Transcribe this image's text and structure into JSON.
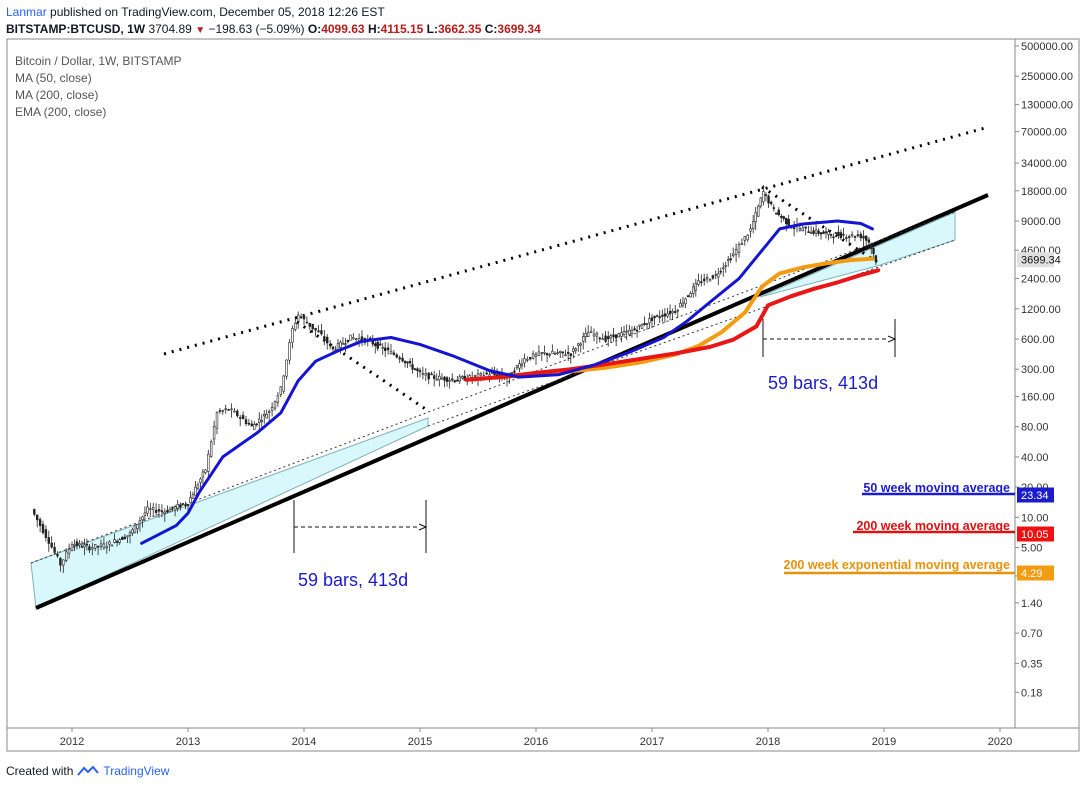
{
  "header": {
    "author": "Lanmar",
    "published_text": "published on TradingView.com, December 05, 2018 12:26 EST",
    "symbol": "BITSTAMP:BTCUSD, 1W",
    "last": "3704.89",
    "change": "−198.63 (−5.09%)",
    "o_label": "O:",
    "o_value": "4099.63",
    "h_label": "H:",
    "h_value": "4115.15",
    "l_label": "L:",
    "l_value": "3662.35",
    "c_label": "C:",
    "c_value": "3699.34"
  },
  "legend": {
    "title": "Bitcoin / Dollar, 1W, BITSTAMP",
    "items": [
      "MA (50, close)",
      "MA (200, close)",
      "EMA (200, close)"
    ]
  },
  "footer": {
    "created_with": "Created with",
    "brand": "TradingView"
  },
  "colors": {
    "ma50": "#1414d2",
    "ma200": "#e81616",
    "ema200": "#f39c12",
    "channel_fill": "#d8f8fc",
    "candles": "#222222",
    "price_label_bg": "#e0e0e0"
  },
  "chart_data": {
    "type": "line",
    "y_scale": "log",
    "x_ticks": [
      "2012",
      "2013",
      "2014",
      "2015",
      "2016",
      "2017",
      "2018",
      "2019",
      "2020"
    ],
    "y_ticks": [
      "500000.00",
      "250000.00",
      "130000.00",
      "70000.00",
      "34000.00",
      "18000.00",
      "9000.00",
      "4600.00",
      "2400.00",
      "1200.00",
      "600.00",
      "300.00",
      "160.00",
      "80.00",
      "40.00",
      "20.00",
      "10.00",
      "5.00",
      "2.60",
      "1.40",
      "0.70",
      "0.35",
      "0.18"
    ],
    "last_price_label": "3699.34",
    "series": [
      {
        "name": "MA (50, close)",
        "points": [
          [
            2012.6,
            5.5
          ],
          [
            2012.9,
            8.3
          ],
          [
            2013.0,
            11
          ],
          [
            2013.1,
            18
          ],
          [
            2013.3,
            40
          ],
          [
            2013.6,
            70
          ],
          [
            2013.8,
            110
          ],
          [
            2013.95,
            230
          ],
          [
            2014.1,
            360
          ],
          [
            2014.3,
            460
          ],
          [
            2014.5,
            570
          ],
          [
            2014.75,
            620
          ],
          [
            2015.0,
            530
          ],
          [
            2015.3,
            400
          ],
          [
            2015.6,
            290
          ],
          [
            2015.85,
            250
          ],
          [
            2016.2,
            265
          ],
          [
            2016.5,
            330
          ],
          [
            2016.8,
            440
          ],
          [
            2017.1,
            620
          ],
          [
            2017.3,
            900
          ],
          [
            2017.5,
            1400
          ],
          [
            2017.75,
            2400
          ],
          [
            2017.95,
            4600
          ],
          [
            2018.1,
            7500
          ],
          [
            2018.3,
            8400
          ],
          [
            2018.6,
            9000
          ],
          [
            2018.8,
            8500
          ],
          [
            2018.9,
            7500
          ]
        ]
      },
      {
        "name": "MA (200, close)",
        "points": [
          [
            2015.4,
            235
          ],
          [
            2015.7,
            250
          ],
          [
            2016.0,
            275
          ],
          [
            2016.3,
            300
          ],
          [
            2016.6,
            335
          ],
          [
            2016.9,
            380
          ],
          [
            2017.2,
            430
          ],
          [
            2017.5,
            500
          ],
          [
            2017.7,
            590
          ],
          [
            2017.9,
            800
          ],
          [
            2018.0,
            1300
          ],
          [
            2018.2,
            1600
          ],
          [
            2018.4,
            1900
          ],
          [
            2018.6,
            2200
          ],
          [
            2018.8,
            2600
          ],
          [
            2018.95,
            2900
          ]
        ]
      },
      {
        "name": "EMA (200, close)",
        "points": [
          [
            2015.7,
            250
          ],
          [
            2016.0,
            265
          ],
          [
            2016.3,
            285
          ],
          [
            2016.6,
            310
          ],
          [
            2016.9,
            350
          ],
          [
            2017.2,
            420
          ],
          [
            2017.4,
            510
          ],
          [
            2017.6,
            700
          ],
          [
            2017.8,
            1100
          ],
          [
            2017.95,
            2000
          ],
          [
            2018.1,
            2700
          ],
          [
            2018.3,
            3100
          ],
          [
            2018.5,
            3400
          ],
          [
            2018.7,
            3650
          ],
          [
            2018.9,
            3800
          ]
        ]
      },
      {
        "name": "BTCUSD",
        "points": [
          [
            2011.65,
            12
          ],
          [
            2011.8,
            5.8
          ],
          [
            2011.9,
            3.4
          ],
          [
            2012.0,
            5.5
          ],
          [
            2012.15,
            5.0
          ],
          [
            2012.3,
            5.3
          ],
          [
            2012.5,
            6.8
          ],
          [
            2012.65,
            12
          ],
          [
            2012.8,
            11.5
          ],
          [
            2013.0,
            14
          ],
          [
            2013.15,
            30
          ],
          [
            2013.25,
            110
          ],
          [
            2013.35,
            120
          ],
          [
            2013.45,
            100
          ],
          [
            2013.55,
            80
          ],
          [
            2013.7,
            115
          ],
          [
            2013.8,
            190
          ],
          [
            2013.9,
            750
          ],
          [
            2013.95,
            1050
          ],
          [
            2014.05,
            820
          ],
          [
            2014.15,
            650
          ],
          [
            2014.25,
            470
          ],
          [
            2014.4,
            620
          ],
          [
            2014.55,
            580
          ],
          [
            2014.7,
            470
          ],
          [
            2014.85,
            380
          ],
          [
            2015.0,
            270
          ],
          [
            2015.1,
            250
          ],
          [
            2015.3,
            235
          ],
          [
            2015.45,
            250
          ],
          [
            2015.6,
            270
          ],
          [
            2015.75,
            245
          ],
          [
            2015.9,
            380
          ],
          [
            2016.05,
            430
          ],
          [
            2016.3,
            430
          ],
          [
            2016.45,
            700
          ],
          [
            2016.6,
            600
          ],
          [
            2016.85,
            740
          ],
          [
            2017.0,
            960
          ],
          [
            2017.2,
            1150
          ],
          [
            2017.4,
            2200
          ],
          [
            2017.55,
            2600
          ],
          [
            2017.7,
            4200
          ],
          [
            2017.85,
            7400
          ],
          [
            2017.96,
            17500
          ],
          [
            2018.05,
            11500
          ],
          [
            2018.2,
            8000
          ],
          [
            2018.35,
            7200
          ],
          [
            2018.5,
            6700
          ],
          [
            2018.65,
            6500
          ],
          [
            2018.8,
            6400
          ],
          [
            2018.87,
            5600
          ],
          [
            2018.93,
            3699.34
          ]
        ]
      }
    ],
    "annotations": [
      "59 bars, 413d",
      "59 bars, 413d",
      "50 week moving average",
      "200 week moving average",
      "200 week exponential moving average"
    ],
    "label_values": [
      "23.34",
      "10.05",
      "4.29"
    ]
  }
}
